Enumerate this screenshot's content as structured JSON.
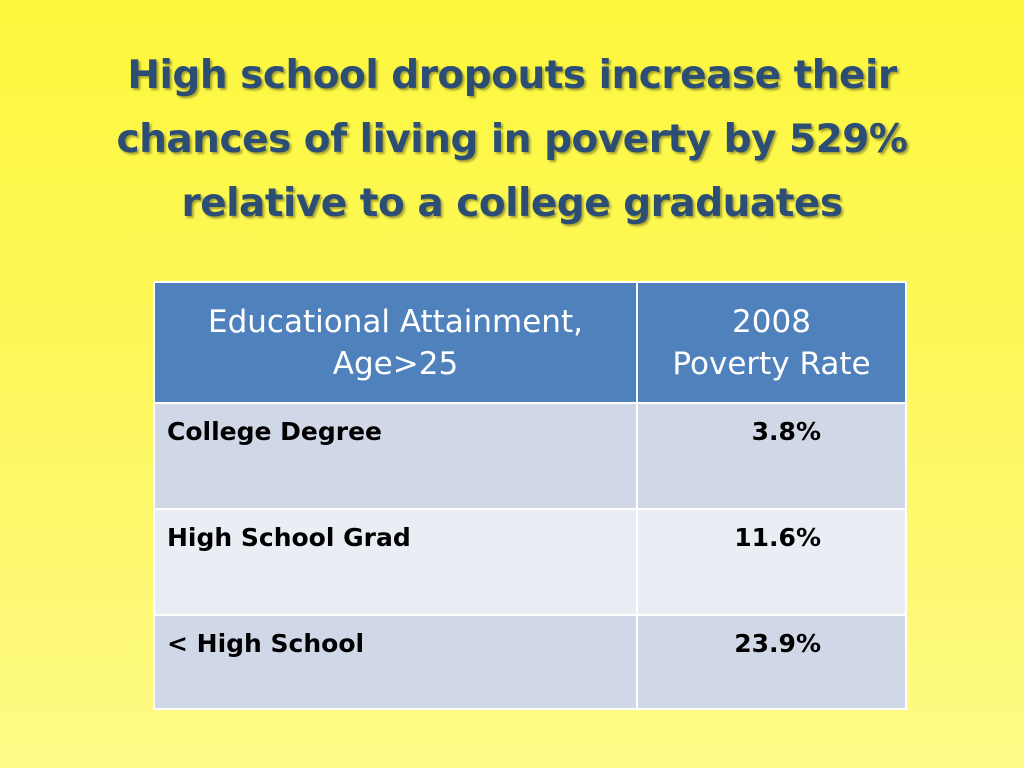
{
  "title": {
    "line1": "High school dropouts increase their",
    "line2": "chances of living in poverty by 529%",
    "line3": "relative to a college graduates"
  },
  "table": {
    "headers": [
      {
        "line1": "Educational Attainment,",
        "line2": "Age>25"
      },
      {
        "line1": "2008",
        "line2": "Poverty Rate"
      }
    ],
    "rows": [
      {
        "attainment": "College Degree",
        "poverty_rate": "3.8%"
      },
      {
        "attainment": "High School Grad",
        "poverty_rate": "11.6%"
      },
      {
        "attainment": "< High School",
        "poverty_rate": "23.9%"
      }
    ]
  },
  "colors": {
    "title_text": "#2d4e74",
    "header_fill": "#4f81bd",
    "row_fill_dark": "#d0d8e8",
    "row_fill_light": "#e9edf4",
    "background_top": "#fdf73d",
    "background_bottom": "#fefa87"
  }
}
